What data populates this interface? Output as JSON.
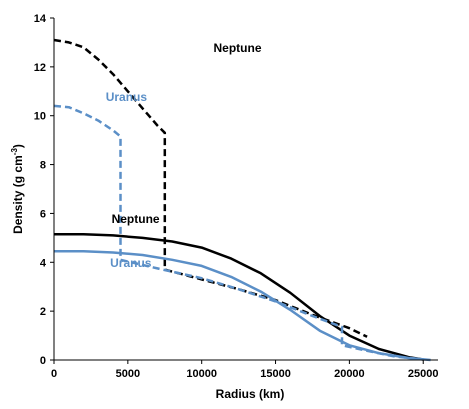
{
  "chart_data": {
    "type": "line",
    "xlabel": "Radius (km)",
    "ylabel_main": "Density (g cm",
    "ylabel_sup": "-3",
    "ylabel_close": ")",
    "xlim": [
      0,
      26000
    ],
    "ylim": [
      0,
      14
    ],
    "xticks": [
      0,
      5000,
      10000,
      15000,
      20000,
      25000
    ],
    "yticks": [
      0,
      2,
      4,
      6,
      8,
      10,
      12,
      14
    ],
    "grid": false,
    "colors": {
      "neptune": "#000000",
      "uranus": "#5b8fc7"
    },
    "series": [
      {
        "planet": "neptune",
        "style": "dashed",
        "points": [
          [
            0,
            13.1
          ],
          [
            1000,
            13.0
          ],
          [
            2000,
            12.8
          ],
          [
            3000,
            12.3
          ],
          [
            4000,
            11.7
          ],
          [
            5000,
            11.0
          ],
          [
            6000,
            10.3
          ],
          [
            7000,
            9.6
          ],
          [
            7500,
            9.3
          ],
          [
            7500,
            3.7
          ],
          [
            10000,
            3.3
          ],
          [
            12500,
            2.9
          ],
          [
            15000,
            2.45
          ],
          [
            17500,
            1.85
          ],
          [
            20000,
            1.3
          ],
          [
            21200,
            0.95
          ]
        ]
      },
      {
        "planet": "neptune",
        "style": "solid",
        "points": [
          [
            0,
            5.15
          ],
          [
            2000,
            5.15
          ],
          [
            4000,
            5.1
          ],
          [
            6000,
            5.0
          ],
          [
            8000,
            4.85
          ],
          [
            10000,
            4.6
          ],
          [
            12000,
            4.15
          ],
          [
            14000,
            3.55
          ],
          [
            16000,
            2.75
          ],
          [
            18000,
            1.8
          ],
          [
            20000,
            1.0
          ],
          [
            22000,
            0.45
          ],
          [
            24000,
            0.12
          ],
          [
            25000,
            0.02
          ]
        ]
      },
      {
        "planet": "uranus",
        "style": "dashed",
        "points": [
          [
            0,
            10.4
          ],
          [
            1000,
            10.35
          ],
          [
            2000,
            10.1
          ],
          [
            3000,
            9.8
          ],
          [
            4000,
            9.4
          ],
          [
            4500,
            9.15
          ],
          [
            4500,
            4.1
          ],
          [
            7000,
            3.75
          ],
          [
            10000,
            3.35
          ],
          [
            12500,
            2.9
          ],
          [
            15000,
            2.4
          ],
          [
            17500,
            1.8
          ],
          [
            19500,
            1.35
          ],
          [
            19500,
            0.6
          ],
          [
            21000,
            0.4
          ],
          [
            23000,
            0.15
          ],
          [
            25000,
            0.02
          ]
        ]
      },
      {
        "planet": "uranus",
        "style": "solid",
        "points": [
          [
            0,
            4.45
          ],
          [
            2000,
            4.45
          ],
          [
            4000,
            4.4
          ],
          [
            6000,
            4.3
          ],
          [
            8000,
            4.1
          ],
          [
            10000,
            3.85
          ],
          [
            12000,
            3.4
          ],
          [
            14000,
            2.8
          ],
          [
            16000,
            2.05
          ],
          [
            18000,
            1.2
          ],
          [
            20000,
            0.6
          ],
          [
            22000,
            0.28
          ],
          [
            24000,
            0.08
          ],
          [
            25500,
            0.0
          ]
        ]
      }
    ],
    "annotations": [
      {
        "text": "Neptune",
        "planet": "neptune",
        "x": 10800,
        "y": 12.6
      },
      {
        "text": "Uranus",
        "planet": "uranus",
        "x": 3500,
        "y": 10.6
      },
      {
        "text": "Neptune",
        "planet": "neptune",
        "x": 3900,
        "y": 5.6
      },
      {
        "text": "Uranus",
        "planet": "uranus",
        "x": 3800,
        "y": 3.8
      }
    ]
  }
}
